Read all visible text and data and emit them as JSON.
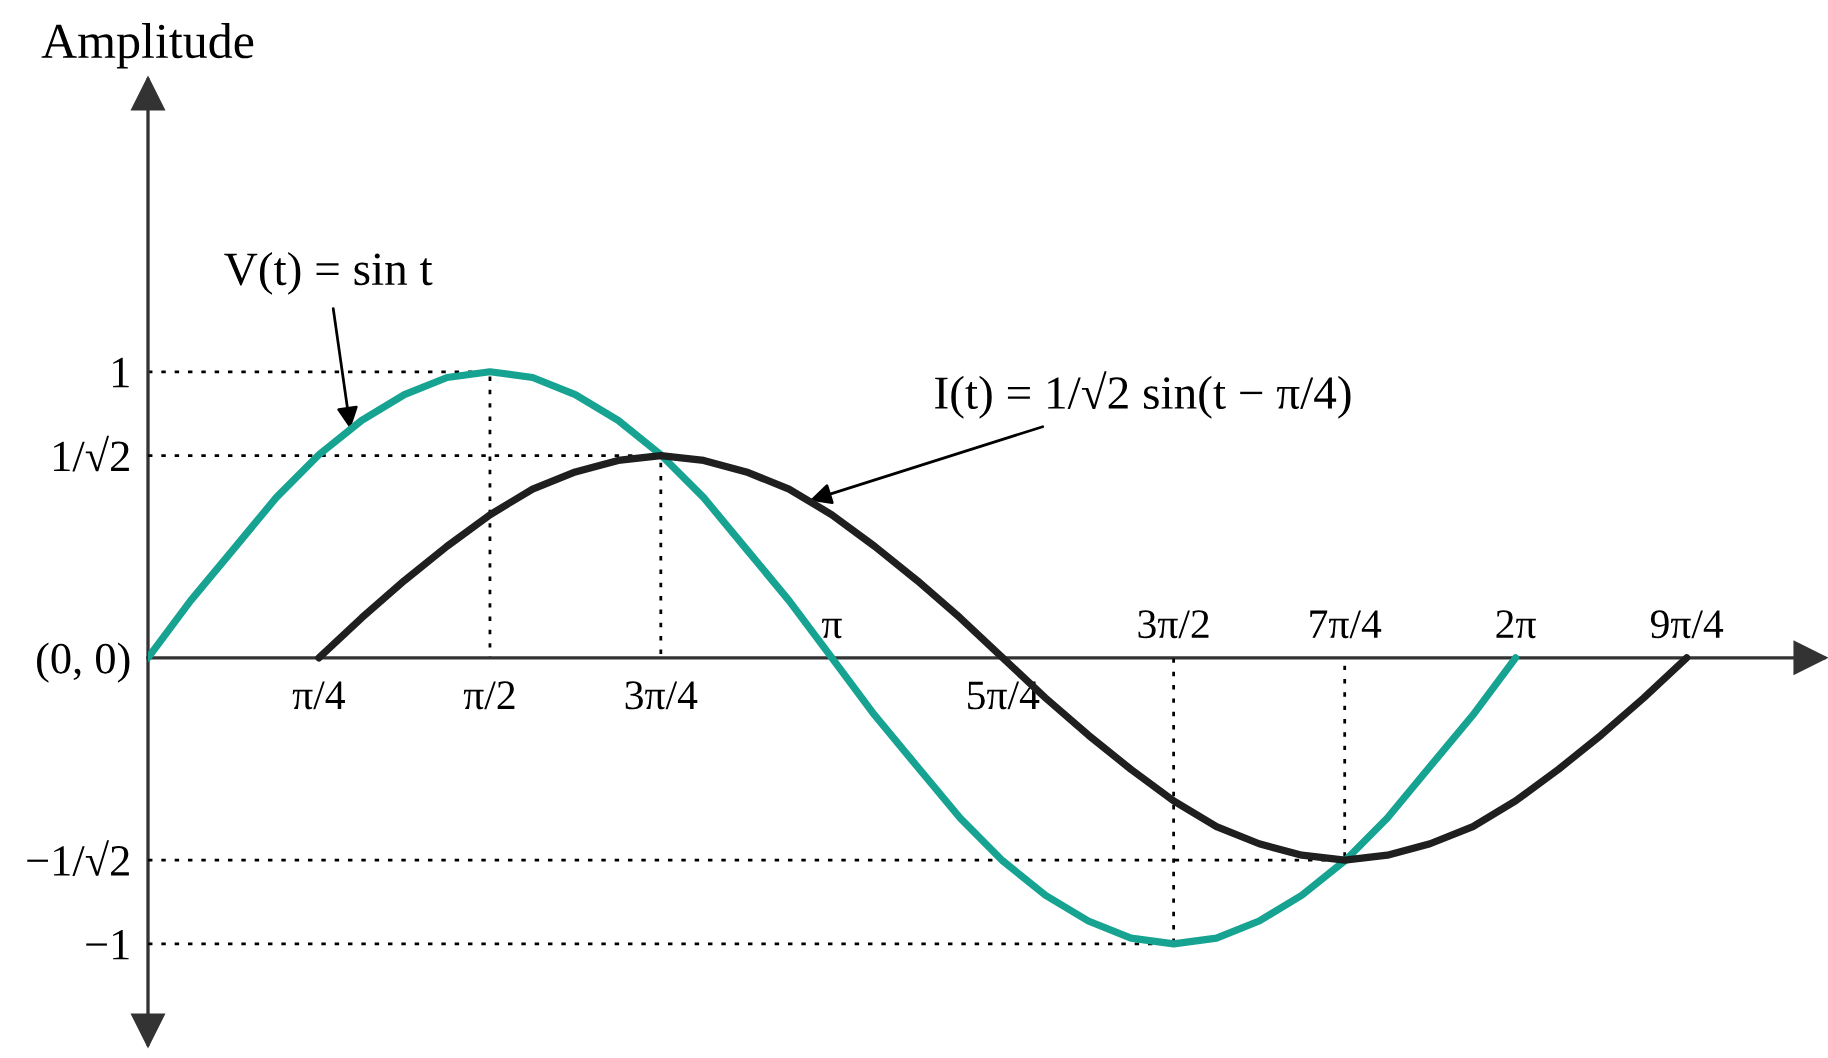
{
  "chart_data": {
    "type": "line",
    "ylabel": "Amplitude",
    "xlim": [
      0,
      7.7
    ],
    "xticks": [
      {
        "value": 0.785,
        "label": "π/4"
      },
      {
        "value": 1.571,
        "label": "π/2"
      },
      {
        "value": 2.356,
        "label": "3π/4"
      },
      {
        "value": 3.927,
        "label": "5π/4"
      }
    ],
    "x2lim": [
      0,
      7.7
    ],
    "x2ticks": [
      {
        "value": 3.142,
        "label": "π"
      },
      {
        "value": 4.712,
        "label": "3π/2"
      },
      {
        "value": 5.498,
        "label": "7π/4"
      },
      {
        "value": 6.283,
        "label": "2π"
      },
      {
        "value": 7.069,
        "label": "9π/4"
      }
    ],
    "ylim": [
      -1.35,
      2.02
    ],
    "yticks": [
      1,
      {
        "value": 0.707,
        "label": "1/√2"
      },
      {
        "value": 0,
        "label": "(0, 0)"
      },
      {
        "value": -0.707,
        "label": "−1/√2"
      },
      {
        "value": -1,
        "label": "−1"
      }
    ],
    "series": [
      {
        "color": "#000000",
        "line_style": "dotted",
        "x": [
          0,
          1.571,
          1.571
        ],
        "values": [
          1,
          1,
          0
        ]
      },
      {
        "color": "#000000",
        "line_style": "dotted",
        "x": [
          0,
          2.356,
          2.356
        ],
        "values": [
          0.707,
          0.707,
          0
        ]
      },
      {
        "color": "#000000",
        "line_style": "dotted",
        "x": [
          0,
          4.712,
          4.712
        ],
        "values": [
          -1,
          -1,
          0
        ]
      },
      {
        "color": "#000000",
        "line_style": "dotted",
        "x": [
          0,
          5.498,
          5.498
        ],
        "values": [
          -0.707,
          -0.707,
          0
        ]
      },
      {
        "color": "#16a391",
        "x": [
          0,
          0.196,
          0.393,
          0.589,
          0.785,
          0.982,
          1.178,
          1.374,
          1.571,
          1.767,
          1.963,
          2.16,
          2.356,
          2.553,
          2.749,
          2.945,
          3.142,
          3.338,
          3.534,
          3.731,
          3.927,
          4.123,
          4.32,
          4.516,
          4.712,
          4.909,
          5.105,
          5.301,
          5.498,
          5.694,
          5.89,
          6.087,
          6.283
        ],
        "values": [
          0,
          0.2,
          0.38,
          0.56,
          0.71,
          0.83,
          0.92,
          0.98,
          1,
          0.98,
          0.92,
          0.83,
          0.71,
          0.56,
          0.38,
          0.2,
          0,
          -0.2,
          -0.38,
          -0.56,
          -0.71,
          -0.83,
          -0.92,
          -0.98,
          -1,
          -0.98,
          -0.92,
          -0.83,
          -0.71,
          -0.56,
          -0.38,
          -0.2,
          0
        ]
      },
      {
        "color": "#1f1f1f",
        "x": [
          0.785,
          0.982,
          1.178,
          1.374,
          1.571,
          1.767,
          1.963,
          2.16,
          2.356,
          2.553,
          2.749,
          2.945,
          3.142,
          3.338,
          3.534,
          3.731,
          3.927,
          4.123,
          4.32,
          4.516,
          4.712,
          4.909,
          5.105,
          5.301,
          5.498,
          5.694,
          5.89,
          6.087,
          6.283,
          6.48,
          6.676,
          6.872,
          7.069
        ],
        "values": [
          0,
          0.14,
          0.27,
          0.39,
          0.5,
          0.59,
          0.65,
          0.69,
          0.707,
          0.69,
          0.65,
          0.59,
          0.5,
          0.39,
          0.27,
          0.14,
          0,
          -0.14,
          -0.27,
          -0.39,
          -0.5,
          -0.59,
          -0.65,
          -0.69,
          -0.707,
          -0.69,
          -0.65,
          -0.59,
          -0.5,
          -0.39,
          -0.27,
          -0.14,
          0
        ]
      }
    ],
    "annotations": [
      {
        "text": "V(t) = sin t",
        "x": 0.93,
        "y": 0.8
      },
      {
        "text": "I(t) = 1/√2 sin(t − π/4)",
        "x": 3.04,
        "y": 0.55
      }
    ]
  }
}
